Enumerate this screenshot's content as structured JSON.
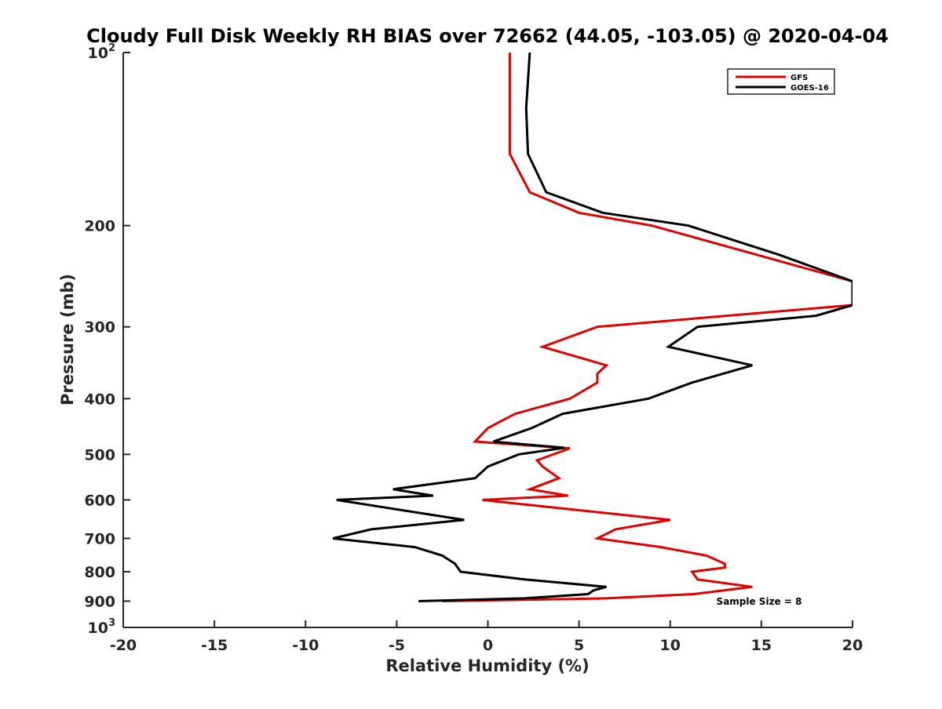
{
  "chart_data": {
    "type": "line",
    "title": "Cloudy Full Disk Weekly RH BIAS over 72662 (44.05, -103.05) @ 2020-04-04",
    "xlabel": "Relative Humidity (%)",
    "ylabel": "Pressure (mb)",
    "xlim": [
      -20,
      20
    ],
    "ylim": [
      100,
      1000
    ],
    "y_scale": "log",
    "y_reversed": true,
    "grid": false,
    "legend_position": "top-right",
    "xticks": [
      -20,
      -15,
      -10,
      -5,
      0,
      5,
      10,
      15,
      20
    ],
    "xtick_labels": [
      "-20",
      "-15",
      "-10",
      "-5",
      "0",
      "5",
      "10",
      "15",
      "20"
    ],
    "yticks": [
      100,
      200,
      300,
      400,
      500,
      600,
      700,
      800,
      900,
      1000
    ],
    "ytick_labels": [
      {
        "base": "10",
        "exp": "2"
      },
      {
        "base": "200",
        "exp": ""
      },
      {
        "base": "300",
        "exp": ""
      },
      {
        "base": "400",
        "exp": ""
      },
      {
        "base": "500",
        "exp": ""
      },
      {
        "base": "600",
        "exp": ""
      },
      {
        "base": "700",
        "exp": ""
      },
      {
        "base": "800",
        "exp": ""
      },
      {
        "base": "900",
        "exp": ""
      },
      {
        "base": "10",
        "exp": "3"
      }
    ],
    "annotation": "Sample Size = 8",
    "series": [
      {
        "name": "GFS",
        "color": "#e00000",
        "points": [
          [
            1.2,
            100
          ],
          [
            1.2,
            125
          ],
          [
            1.2,
            150
          ],
          [
            2.3,
            175
          ],
          [
            5.0,
            190
          ],
          [
            9.0,
            200
          ],
          [
            20.0,
            250
          ],
          [
            20.0,
            275
          ],
          [
            6.0,
            300
          ],
          [
            3.0,
            325
          ],
          [
            6.5,
            350
          ],
          [
            6.0,
            362
          ],
          [
            6.0,
            375
          ],
          [
            4.5,
            400
          ],
          [
            1.5,
            425
          ],
          [
            0.0,
            450
          ],
          [
            -0.7,
            475
          ],
          [
            4.5,
            488
          ],
          [
            2.7,
            512
          ],
          [
            3.0,
            525
          ],
          [
            3.9,
            550
          ],
          [
            2.3,
            575
          ],
          [
            4.4,
            590
          ],
          [
            -0.3,
            600
          ],
          [
            10.0,
            650
          ],
          [
            7.0,
            675
          ],
          [
            6.0,
            700
          ],
          [
            9.5,
            725
          ],
          [
            12.0,
            750
          ],
          [
            13.0,
            775
          ],
          [
            13.0,
            787
          ],
          [
            11.2,
            800
          ],
          [
            11.5,
            825
          ],
          [
            14.5,
            850
          ],
          [
            11.3,
            875
          ],
          [
            6.5,
            890
          ],
          [
            -2.5,
            900
          ]
        ]
      },
      {
        "name": "GOES-16",
        "color": "#000000",
        "points": [
          [
            2.3,
            100
          ],
          [
            2.1,
            125
          ],
          [
            2.2,
            150
          ],
          [
            3.2,
            175
          ],
          [
            6.3,
            190
          ],
          [
            11.0,
            200
          ],
          [
            16.0,
            225
          ],
          [
            20.0,
            250
          ],
          [
            20.0,
            275
          ],
          [
            18.0,
            287
          ],
          [
            11.5,
            300
          ],
          [
            9.9,
            325
          ],
          [
            14.5,
            350
          ],
          [
            11.2,
            375
          ],
          [
            8.8,
            400
          ],
          [
            4.1,
            425
          ],
          [
            2.4,
            450
          ],
          [
            0.3,
            475
          ],
          [
            4.2,
            487
          ],
          [
            1.7,
            500
          ],
          [
            0.0,
            525
          ],
          [
            -0.7,
            550
          ],
          [
            -5.2,
            575
          ],
          [
            -3.0,
            590
          ],
          [
            -8.3,
            600
          ],
          [
            -1.3,
            650
          ],
          [
            -6.4,
            675
          ],
          [
            -8.5,
            700
          ],
          [
            -4.0,
            725
          ],
          [
            -2.5,
            750
          ],
          [
            -1.8,
            775
          ],
          [
            -1.5,
            800
          ],
          [
            2.0,
            825
          ],
          [
            6.5,
            850
          ],
          [
            5.8,
            862
          ],
          [
            5.5,
            875
          ],
          [
            2.0,
            890
          ],
          [
            -3.8,
            900
          ]
        ]
      }
    ]
  }
}
